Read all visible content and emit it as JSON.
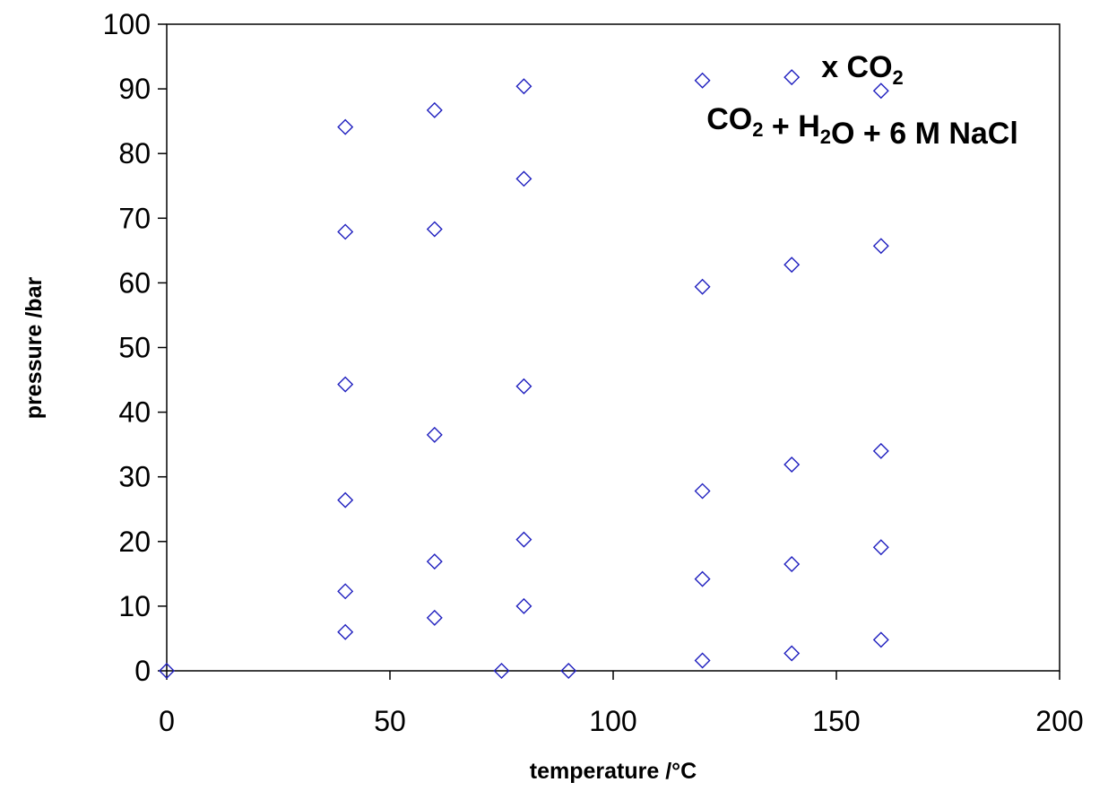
{
  "chart_data": {
    "type": "scatter",
    "xlabel": "temperature /°C",
    "ylabel": "pressure /bar",
    "xlim": [
      0,
      200
    ],
    "ylim": [
      0,
      100
    ],
    "x_ticks": [
      "0",
      "50",
      "100",
      "150",
      "200"
    ],
    "y_ticks": [
      "0",
      "10",
      "20",
      "30",
      "40",
      "50",
      "60",
      "70",
      "80",
      "90",
      "100"
    ],
    "grid": false,
    "legend_position": "top-right",
    "marker": "open-diamond",
    "series_color": "#1f1fbf",
    "series": [
      {
        "legend_lines": [
          {
            "parts": [
              {
                "text": "x CO"
              },
              {
                "text": "2",
                "sub": true
              }
            ]
          },
          {
            "parts": [
              {
                "text": "CO"
              },
              {
                "text": "2",
                "sub": true
              },
              {
                "text": " + H"
              },
              {
                "text": "2",
                "sub": true
              },
              {
                "text": "O + 6 M NaCl"
              }
            ]
          }
        ],
        "points": [
          {
            "x": 0,
            "y": 0
          },
          {
            "x": 40,
            "y": 6.0
          },
          {
            "x": 40,
            "y": 12.3
          },
          {
            "x": 40,
            "y": 26.4
          },
          {
            "x": 40,
            "y": 44.3
          },
          {
            "x": 40,
            "y": 67.9
          },
          {
            "x": 40,
            "y": 84.1
          },
          {
            "x": 60,
            "y": 8.2
          },
          {
            "x": 60,
            "y": 16.9
          },
          {
            "x": 60,
            "y": 36.5
          },
          {
            "x": 60,
            "y": 68.3
          },
          {
            "x": 60,
            "y": 86.7
          },
          {
            "x": 75,
            "y": 0
          },
          {
            "x": 80,
            "y": 10.0
          },
          {
            "x": 80,
            "y": 20.3
          },
          {
            "x": 80,
            "y": 44.0
          },
          {
            "x": 80,
            "y": 76.1
          },
          {
            "x": 80,
            "y": 90.4
          },
          {
            "x": 90,
            "y": 0
          },
          {
            "x": 120,
            "y": 1.6
          },
          {
            "x": 120,
            "y": 14.2
          },
          {
            "x": 120,
            "y": 27.8
          },
          {
            "x": 120,
            "y": 59.4
          },
          {
            "x": 120,
            "y": 91.3
          },
          {
            "x": 140,
            "y": 2.7
          },
          {
            "x": 140,
            "y": 16.5
          },
          {
            "x": 140,
            "y": 31.9
          },
          {
            "x": 140,
            "y": 62.8
          },
          {
            "x": 140,
            "y": 91.8
          },
          {
            "x": 160,
            "y": 4.8
          },
          {
            "x": 160,
            "y": 19.1
          },
          {
            "x": 160,
            "y": 34.0
          },
          {
            "x": 160,
            "y": 65.7
          },
          {
            "x": 160,
            "y": 89.7
          }
        ]
      }
    ]
  }
}
